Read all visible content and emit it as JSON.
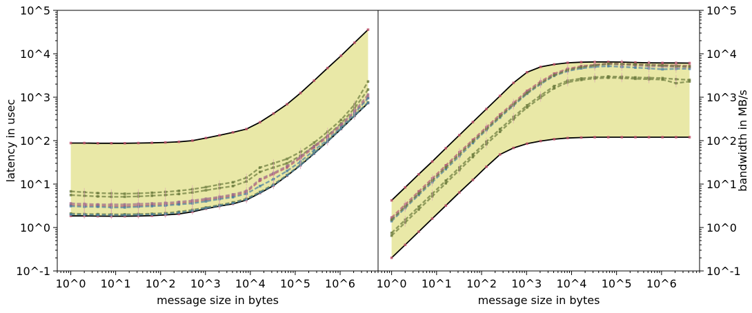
{
  "chart_data": [
    {
      "type": "line",
      "panel": "left",
      "xlabel": "message size in bytes",
      "ylabel": "latency in usec",
      "xscale": "log",
      "yscale": "log",
      "xlim": [
        0.5,
        7000000
      ],
      "ylim": [
        0.1,
        100000
      ],
      "xticks": [
        "10^0",
        "10^1",
        "10^2",
        "10^3",
        "10^4",
        "10^5",
        "10^6"
      ],
      "yticks": [
        "10^-1",
        "10^0",
        "10^1",
        "10^2",
        "10^3",
        "10^4",
        "10^5"
      ],
      "ytick_side": "left",
      "grid": false,
      "legend": "none",
      "band": {
        "color": "#e2e08a",
        "upper": "max",
        "lower": "min"
      },
      "x": [
        1,
        2,
        4,
        8,
        16,
        32,
        64,
        128,
        256,
        512,
        1024,
        2048,
        4096,
        8192,
        16384,
        32768,
        65536,
        131072,
        262144,
        524288,
        1048576,
        2097152,
        4194304
      ],
      "series": [
        {
          "role": "max",
          "color": "#000000",
          "style": "solid",
          "values": [
            88,
            88,
            87,
            87,
            87,
            88,
            89,
            91,
            94,
            100,
            115,
            133,
            155,
            185,
            265,
            420,
            690,
            1250,
            2400,
            4700,
            9000,
            18000,
            36000
          ]
        },
        {
          "role": "min",
          "color": "#000000",
          "style": "solid",
          "values": [
            1.85,
            1.85,
            1.83,
            1.82,
            1.82,
            1.84,
            1.87,
            1.95,
            2.05,
            2.3,
            2.7,
            3.1,
            3.5,
            4.3,
            6.2,
            9.2,
            15.5,
            27,
            50,
            95,
            185,
            370,
            730
          ]
        },
        {
          "color": "#6a7a3c",
          "style": "dashed",
          "values": [
            6.8,
            6.5,
            6.2,
            6.1,
            6.0,
            6.1,
            6.3,
            6.6,
            7.0,
            7.6,
            8.5,
            9.8,
            11,
            14,
            24,
            30,
            38,
            55,
            90,
            160,
            300,
            680,
            2300
          ]
        },
        {
          "color": "#6a7a3c",
          "style": "dashed",
          "values": [
            5.6,
            5.4,
            5.2,
            5.1,
            5.1,
            5.2,
            5.4,
            5.6,
            5.9,
            6.4,
            7.2,
            8.1,
            9.0,
            11.5,
            19,
            24,
            30,
            45,
            75,
            130,
            250,
            560,
            1500
          ]
        },
        {
          "color": "#b25a6e",
          "style": "dashed",
          "values": [
            3.3,
            3.2,
            3.2,
            3.1,
            3.1,
            3.2,
            3.3,
            3.4,
            3.6,
            3.9,
            4.3,
            4.8,
            5.4,
            6.5,
            12,
            17,
            24,
            40,
            70,
            120,
            220,
            450,
            1000
          ]
        },
        {
          "color": "#4a7fa0",
          "style": "dashed",
          "values": [
            3.1,
            3.0,
            3.0,
            2.9,
            2.9,
            3.0,
            3.1,
            3.2,
            3.4,
            3.6,
            4.0,
            4.5,
            5.0,
            6.0,
            9.0,
            13,
            20,
            33,
            60,
            105,
            200,
            420,
            950
          ]
        },
        {
          "color": "#9b6b8c",
          "style": "dashed",
          "values": [
            3.6,
            3.5,
            3.4,
            3.4,
            3.4,
            3.5,
            3.6,
            3.7,
            3.9,
            4.2,
            4.6,
            5.1,
            5.8,
            7.0,
            13,
            18,
            26,
            43,
            75,
            130,
            235,
            480,
            1150
          ]
        },
        {
          "color": "#6a7a3c",
          "style": "dashed",
          "values": [
            2.1,
            2.05,
            2.03,
            2.02,
            2.02,
            2.04,
            2.08,
            2.15,
            2.3,
            2.55,
            2.9,
            3.3,
            3.8,
            4.6,
            6.6,
            9.8,
            16,
            28,
            52,
            98,
            190,
            380,
            760
          ]
        },
        {
          "color": "#4a7fa0",
          "style": "dashed",
          "values": [
            2.0,
            1.97,
            1.95,
            1.94,
            1.94,
            1.96,
            2.0,
            2.05,
            2.2,
            2.45,
            2.8,
            3.2,
            3.65,
            4.45,
            6.4,
            9.5,
            15.8,
            27.5,
            51,
            96,
            188,
            375,
            745
          ]
        }
      ]
    },
    {
      "type": "line",
      "panel": "right",
      "xlabel": "message size in bytes",
      "ylabel": "bandwidth in MB/s",
      "xscale": "log",
      "yscale": "log",
      "xlim": [
        0.5,
        7000000
      ],
      "ylim": [
        0.1,
        100000
      ],
      "xticks": [
        "10^0",
        "10^1",
        "10^2",
        "10^3",
        "10^4",
        "10^5",
        "10^6"
      ],
      "yticks": [
        "10^-1",
        "10^0",
        "10^1",
        "10^2",
        "10^3",
        "10^4",
        "10^5"
      ],
      "ytick_side": "right",
      "grid": false,
      "legend": "none",
      "band": {
        "color": "#e2e08a",
        "upper": "max",
        "lower": "min"
      },
      "x": [
        1,
        2,
        4,
        8,
        16,
        32,
        64,
        128,
        256,
        512,
        1024,
        2048,
        4096,
        8192,
        16384,
        32768,
        65536,
        131072,
        262144,
        524288,
        1048576,
        2097152,
        4194304
      ],
      "series": [
        {
          "role": "max",
          "color": "#000000",
          "style": "solid",
          "values": [
            4.2,
            8.4,
            16.8,
            33,
            67,
            134,
            268,
            535,
            1070,
            2140,
            3750,
            5000,
            5700,
            6200,
            6400,
            6500,
            6500,
            6450,
            6300,
            6200,
            6150,
            6150,
            6100
          ]
        },
        {
          "role": "min",
          "color": "#000000",
          "style": "solid",
          "values": [
            0.2,
            0.4,
            0.8,
            1.6,
            3.2,
            6.4,
            12.5,
            25,
            48,
            68,
            85,
            98,
            108,
            115,
            118,
            120,
            120,
            120,
            120,
            120,
            120,
            120,
            120
          ]
        },
        {
          "color": "#b25a6e",
          "style": "dashed",
          "values": [
            1.7,
            3.4,
            6.8,
            13.5,
            27,
            54,
            105,
            205,
            400,
            740,
            1400,
            2300,
            3500,
            4500,
            5200,
            5600,
            6000,
            5900,
            5700,
            5600,
            5500,
            5400,
            5300
          ]
        },
        {
          "color": "#4a7fa0",
          "style": "dashed",
          "values": [
            1.4,
            2.8,
            5.6,
            11,
            22,
            44,
            88,
            175,
            340,
            640,
            1200,
            2000,
            3100,
            4000,
            4600,
            5000,
            5200,
            5000,
            4800,
            4600,
            4400,
            4500,
            4500
          ]
        },
        {
          "color": "#9b6b8c",
          "style": "dashed",
          "values": [
            1.55,
            3.1,
            6.2,
            12.4,
            25,
            50,
            98,
            190,
            370,
            690,
            1300,
            2150,
            3300,
            4300,
            5000,
            5400,
            5800,
            5600,
            5400,
            5200,
            5100,
            5000,
            4900
          ]
        },
        {
          "color": "#6a7a3c",
          "style": "dashed",
          "values": [
            0.75,
            1.5,
            3.0,
            6.0,
            12,
            24,
            48,
            95,
            185,
            350,
            650,
            1100,
            1800,
            2400,
            2700,
            2900,
            3000,
            2950,
            2850,
            2800,
            2750,
            2600,
            2500
          ]
        },
        {
          "color": "#6a7a3c",
          "style": "dashed",
          "values": [
            0.65,
            1.3,
            2.6,
            5.2,
            10.4,
            21,
            42,
            83,
            160,
            310,
            580,
            980,
            1600,
            2200,
            2500,
            2700,
            2800,
            2750,
            2650,
            2600,
            2550,
            2100,
            2300
          ]
        },
        {
          "color": "#6a7a3c",
          "style": "dashed",
          "values": [
            1.5,
            3.0,
            6.0,
            12,
            24,
            48,
            95,
            185,
            360,
            680,
            1250,
            2100,
            3200,
            4200,
            4900,
            5400,
            5900,
            5800,
            5700,
            5500,
            5400,
            5200,
            5100
          ]
        }
      ]
    }
  ]
}
